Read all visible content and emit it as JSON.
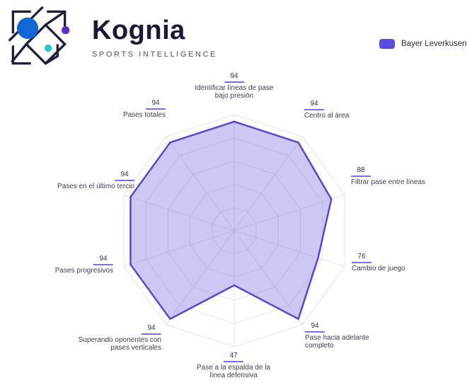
{
  "header": {
    "brand_name": "Kognia",
    "brand_tagline": "SPORTS INTELLIGENCE"
  },
  "legend": {
    "label": "Bayer Leverkusen",
    "color": "#5a4ee0"
  },
  "chart_data": {
    "type": "radar",
    "title": "",
    "max": 100,
    "rings": 5,
    "grid": true,
    "legend_position": "top-right",
    "categories": [
      "Identificar líneas de pase bajo presión",
      "Centro al área",
      "Filtrar pase entre líneas",
      "Cambio de juego",
      "Pase hacia adelante completo",
      "Pase a la espalda de la línea defensiva",
      "Superando oponentes con pases verticales",
      "Pases progresivos",
      "Pases en el último tercio",
      "Pases totales"
    ],
    "series": [
      {
        "name": "Bayer Leverkusen",
        "values": [
          94,
          94,
          88,
          76,
          94,
          47,
          94,
          94,
          94,
          94
        ]
      }
    ],
    "axes": [
      {
        "value": "94",
        "lines": [
          "Identificar líneas de pase",
          "bajo presión"
        ]
      },
      {
        "value": "94",
        "lines": [
          "Centro al área"
        ]
      },
      {
        "value": "88",
        "lines": [
          "Filtrar pase entre líneas"
        ]
      },
      {
        "value": "76",
        "lines": [
          "Cambio de juego"
        ]
      },
      {
        "value": "94",
        "lines": [
          "Pase hacia adelante",
          "completo"
        ]
      },
      {
        "value": "47",
        "lines": [
          "Pase a la espalda de la",
          "línea defensiva"
        ]
      },
      {
        "value": "94",
        "lines": [
          "Superando oponentes con",
          "pases verticales"
        ]
      },
      {
        "value": "94",
        "lines": [
          "Pases progresivos"
        ]
      },
      {
        "value": "94",
        "lines": [
          "Pases en el último tercio"
        ]
      },
      {
        "value": "94",
        "lines": [
          "Pases totales"
        ]
      }
    ],
    "colors": {
      "series_stroke": "#5847cd",
      "series_fill": "rgba(110,98,224,0.35)",
      "grid": "#e5e5dc",
      "value_underline": "#7a6ef0",
      "logo_blue": "#1366d6",
      "logo_purple": "#5e2fc8",
      "logo_teal": "#2bc8c4",
      "brand_navy": "#191938"
    }
  }
}
